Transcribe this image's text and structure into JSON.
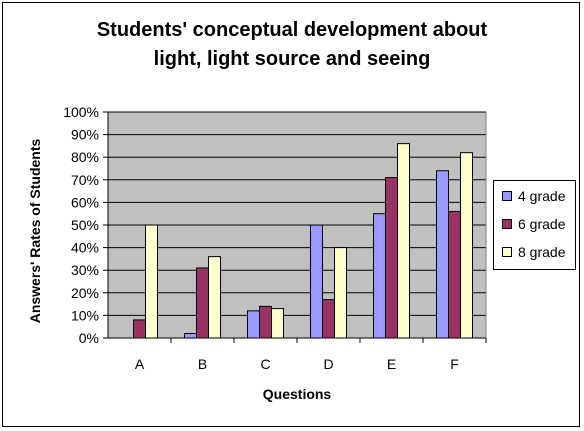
{
  "chart_data": {
    "type": "bar",
    "title_line1": "Students' conceptual development about",
    "title_line2": "light, light source and seeing",
    "xlabel": "Questions",
    "ylabel": "Answers' Rates of Students",
    "categories": [
      "A",
      "B",
      "C",
      "D",
      "E",
      "F"
    ],
    "y_ticks": [
      "0%",
      "10%",
      "20%",
      "30%",
      "40%",
      "50%",
      "60%",
      "70%",
      "80%",
      "90%",
      "100%"
    ],
    "ylim": [
      0,
      100
    ],
    "grid": true,
    "legend_position": "right",
    "series": [
      {
        "name": "4 grade",
        "color": "#9999ff",
        "values": [
          0,
          2,
          12,
          50,
          55,
          74
        ]
      },
      {
        "name": "6 grade",
        "color": "#993366",
        "values": [
          8,
          31,
          14,
          17,
          71,
          56
        ]
      },
      {
        "name": "8 grade",
        "color": "#ffffcc",
        "values": [
          50,
          36,
          13,
          40,
          86,
          82
        ]
      }
    ]
  }
}
